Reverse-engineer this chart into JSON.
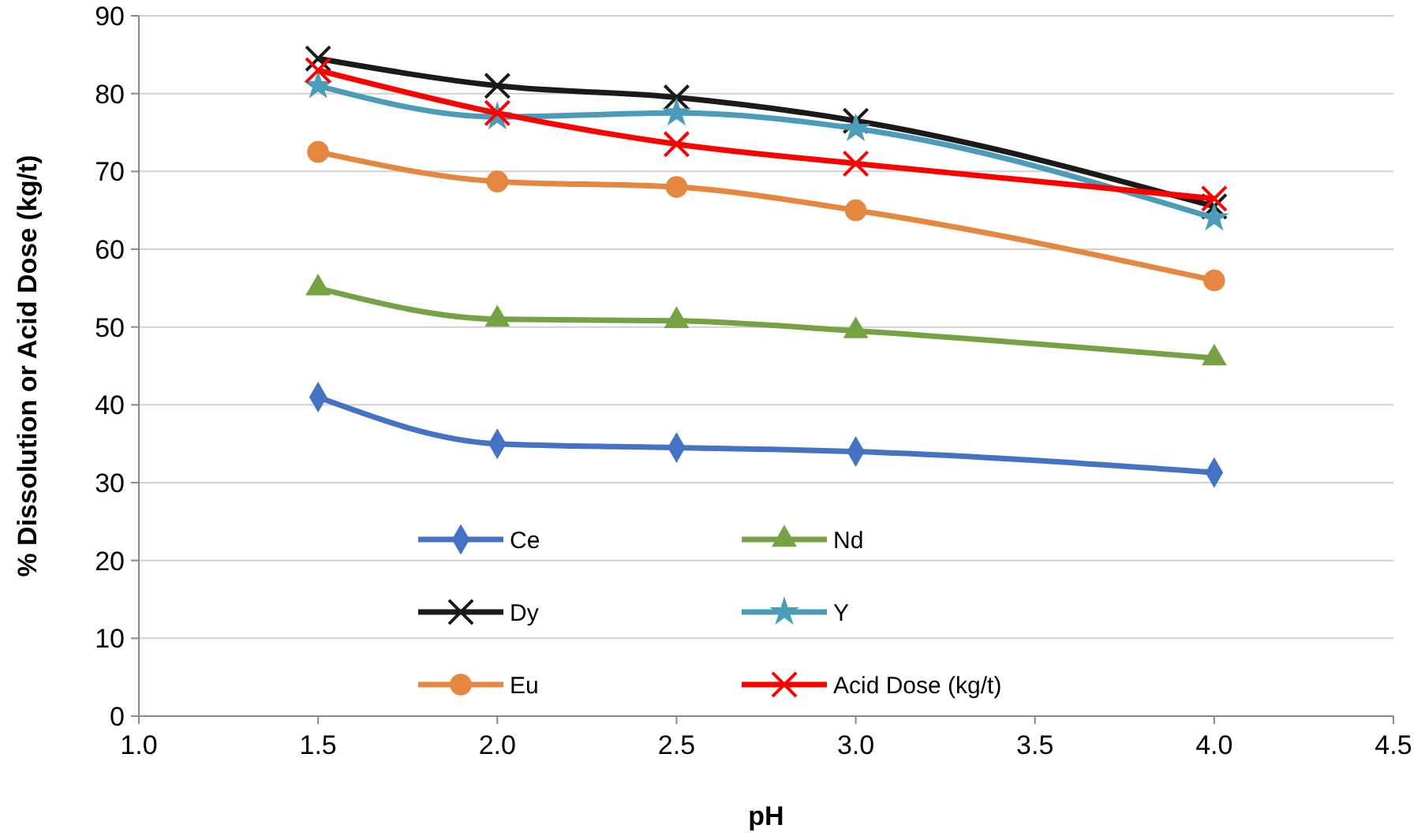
{
  "chart_data": {
    "type": "line",
    "xlabel": "pH",
    "ylabel": "% Dissolution or Acid Dose (kg/t)",
    "x": [
      1.5,
      2.0,
      2.5,
      3.0,
      4.0
    ],
    "xlim": [
      1.0,
      4.5
    ],
    "xticks": [
      {
        "value": 1,
        "label": "1.0"
      },
      {
        "value": 1.5,
        "label": "1.5"
      },
      {
        "value": 2,
        "label": "2.0"
      },
      {
        "value": 2.5,
        "label": "2.5"
      },
      {
        "value": 3,
        "label": "3.0"
      },
      {
        "value": 3.5,
        "label": "3.5"
      },
      {
        "value": 4,
        "label": "4.0"
      },
      {
        "value": 4.5,
        "label": "4.5"
      }
    ],
    "ylim": [
      0,
      90
    ],
    "yticks": [
      0,
      10,
      20,
      30,
      40,
      50,
      60,
      70,
      80,
      90
    ],
    "grid": "y",
    "legend": "bottom left",
    "series": [
      {
        "name": "Ce",
        "color": "#4472c4",
        "marker": "diamond",
        "values": [
          41,
          35,
          34.5,
          34,
          31.3
        ]
      },
      {
        "name": "Nd",
        "color": "#77a243",
        "marker": "triangle",
        "values": [
          55,
          51,
          50.8,
          49.5,
          46
        ]
      },
      {
        "name": "Dy",
        "color": "#1a1a1a",
        "marker": "cross",
        "values": [
          84.5,
          81,
          79.5,
          76.5,
          65.5
        ]
      },
      {
        "name": "Y",
        "color": "#4b9cb8",
        "marker": "star",
        "values": [
          81,
          77,
          77.5,
          75.5,
          64
        ]
      },
      {
        "name": "Eu",
        "color": "#e5873f",
        "marker": "circle",
        "values": [
          72.5,
          68.7,
          68,
          65,
          56
        ]
      },
      {
        "name": "Acid Dose (kg/t)",
        "color": "#ff0000",
        "marker": "cross",
        "values": [
          83,
          77.5,
          73.5,
          71,
          66.5
        ]
      }
    ]
  }
}
